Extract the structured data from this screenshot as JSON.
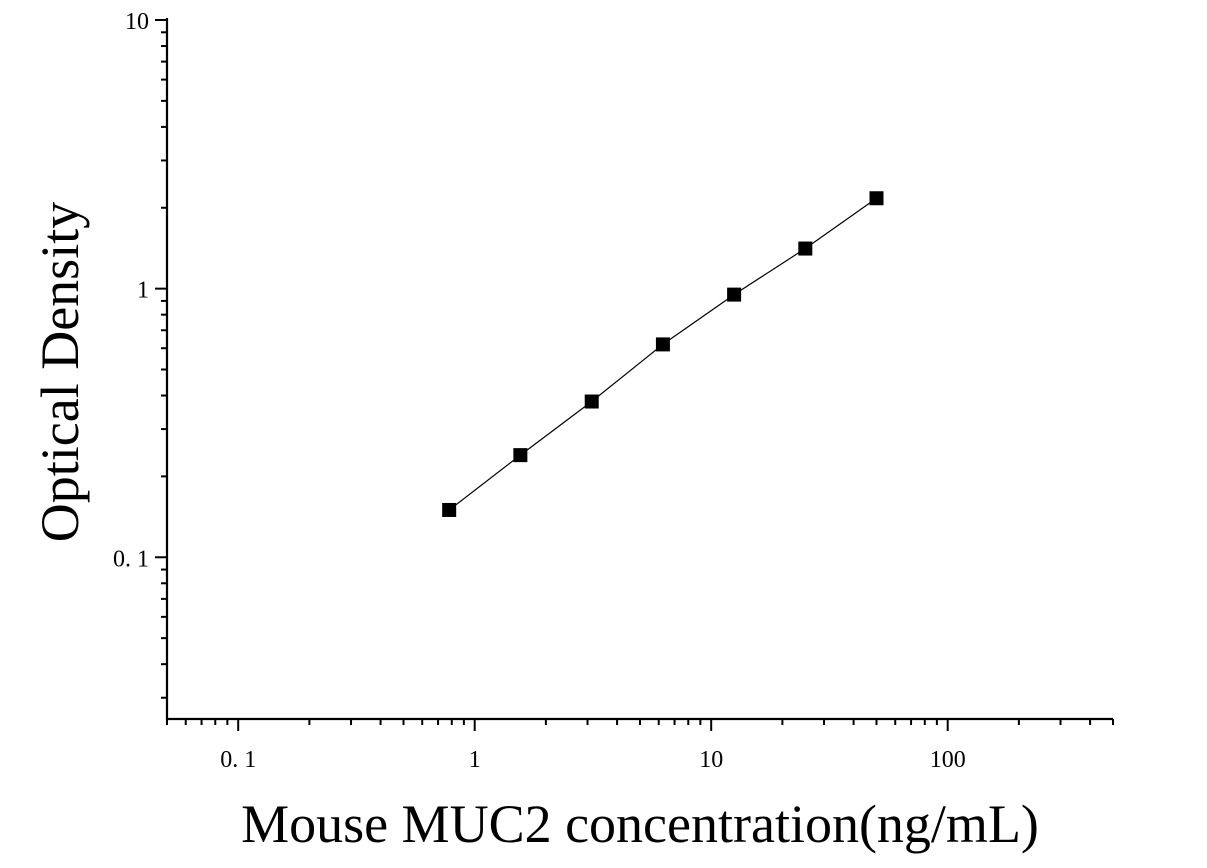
{
  "chart_data": {
    "type": "scatter",
    "xlabel": "Mouse MUC2 concentration(ng/mL)",
    "ylabel": "Optical Density",
    "x_scale": "log",
    "y_scale": "log",
    "xlim": [
      0.05,
      500
    ],
    "ylim": [
      0.025,
      10
    ],
    "x_tick_labels": [
      {
        "value": 0.1,
        "label": "0. 1"
      },
      {
        "value": 1,
        "label": "1"
      },
      {
        "value": 10,
        "label": "10"
      },
      {
        "value": 100,
        "label": "100"
      }
    ],
    "y_tick_labels": [
      {
        "value": 0.1,
        "label": "0. 1"
      },
      {
        "value": 1,
        "label": "1"
      },
      {
        "value": 10,
        "label": "10"
      }
    ],
    "grid": false,
    "series": [
      {
        "x": [
          0.78,
          1.56,
          3.125,
          6.25,
          12.5,
          25,
          50
        ],
        "y": [
          0.15,
          0.24,
          0.38,
          0.62,
          0.95,
          1.41,
          2.17
        ],
        "marker": "square",
        "line": true,
        "color": "#000000"
      }
    ]
  }
}
